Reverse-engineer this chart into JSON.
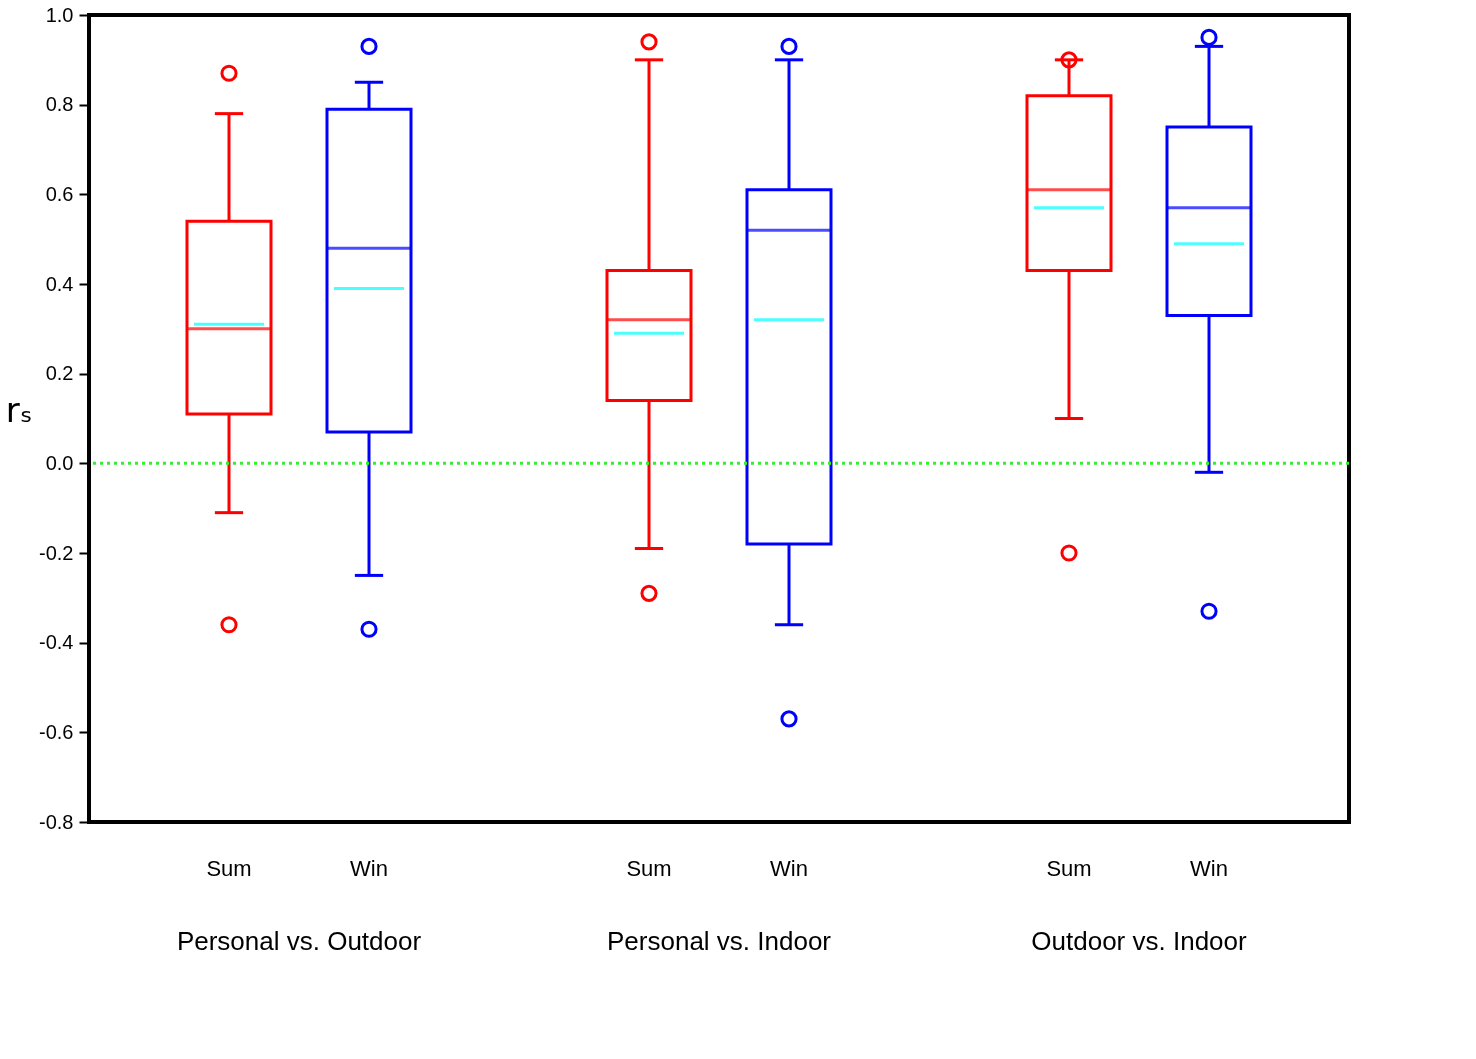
{
  "chart_data": {
    "type": "box",
    "ylabel": "rₛ",
    "categories": [
      "Sum",
      "Win",
      "Sum",
      "Win",
      "Sum",
      "Win"
    ],
    "colors": [
      "#ff0000",
      "#0000ff",
      "#ff0000",
      "#0000ff",
      "#ff0000",
      "#0000ff"
    ],
    "boxes": [
      {
        "low": -0.11,
        "q1": 0.11,
        "median": 0.3,
        "q3": 0.54,
        "high": 0.78,
        "mean": 0.31,
        "outliers": [
          0.87,
          -0.36
        ]
      },
      {
        "low": -0.25,
        "q1": 0.07,
        "median": 0.48,
        "q3": 0.79,
        "high": 0.85,
        "mean": 0.39,
        "outliers": [
          0.93,
          -0.37
        ]
      },
      {
        "low": -0.19,
        "q1": 0.14,
        "median": 0.32,
        "q3": 0.43,
        "high": 0.9,
        "mean": 0.29,
        "outliers": [
          0.94,
          -0.29
        ]
      },
      {
        "low": -0.36,
        "q1": -0.18,
        "median": 0.52,
        "q3": 0.61,
        "high": 0.9,
        "mean": 0.32,
        "outliers": [
          0.93,
          -0.57
        ]
      },
      {
        "low": 0.1,
        "q1": 0.43,
        "median": 0.61,
        "q3": 0.82,
        "high": 0.9,
        "mean": 0.57,
        "outliers": [
          0.9,
          -0.2
        ]
      },
      {
        "low": -0.02,
        "q1": 0.33,
        "median": 0.57,
        "q3": 0.75,
        "high": 0.93,
        "mean": 0.49,
        "outliers": [
          0.95,
          -0.33
        ]
      }
    ],
    "annotations": [
      "Personal vs. Outdoor",
      "Personal vs. Indoor",
      "Outdoor vs. Indoor"
    ],
    "ylim": [
      -0.8,
      1.0
    ],
    "yticks": [
      {
        "value": -0.8,
        "label": "-0.8"
      },
      {
        "value": -0.6,
        "label": "-0.6"
      },
      {
        "value": -0.4,
        "label": "-0.4"
      },
      {
        "value": -0.2,
        "label": "-0.2"
      },
      {
        "value": 0,
        "label": "0.0"
      },
      {
        "value": 0.2,
        "label": "0.2"
      },
      {
        "value": 0.4,
        "label": "0.4"
      },
      {
        "value": 0.6,
        "label": "0.6"
      },
      {
        "value": 0.8,
        "label": "0.8"
      },
      {
        "value": 1.0,
        "label": "1.0"
      }
    ],
    "ref_lines": [
      {
        "axis": "y",
        "value": 0,
        "label": null,
        "color": "#33ee33",
        "line_style": "dotted"
      }
    ],
    "grid": false,
    "legend": false
  }
}
